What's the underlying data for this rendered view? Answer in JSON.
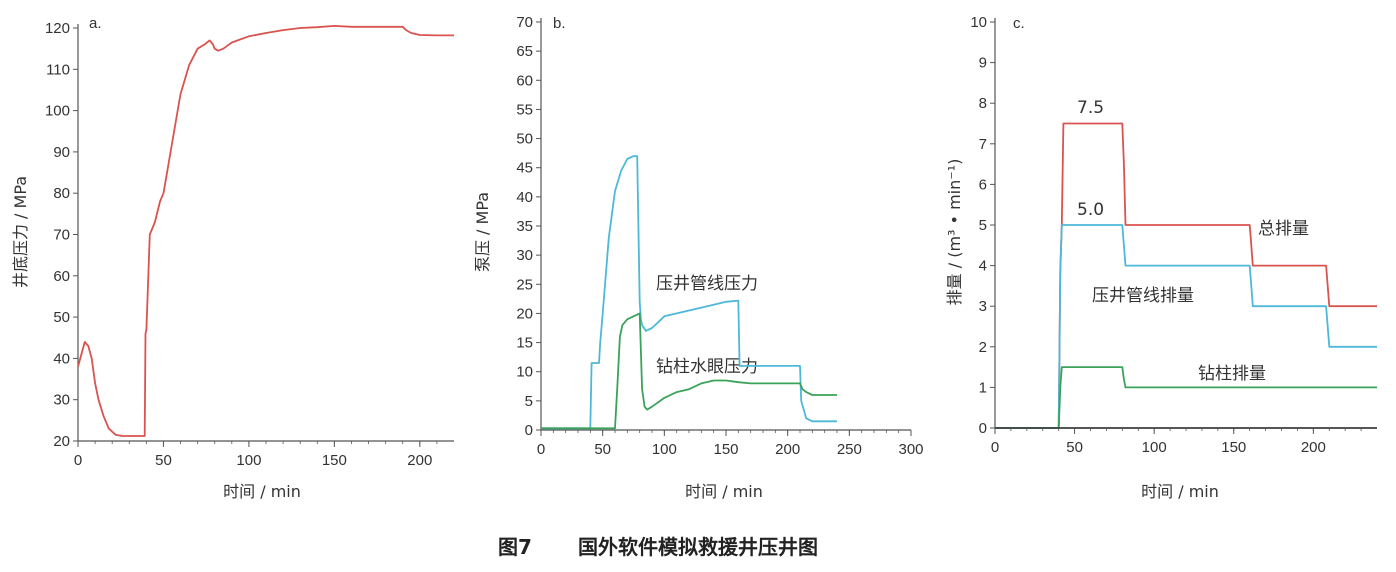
{
  "caption": {
    "label": "图7",
    "text": "国外软件模拟救援井压井图"
  },
  "colors": {
    "red": "#d9534f",
    "blue": "#4db8d8",
    "green": "#3aa35a",
    "axis": "#555555"
  },
  "chart_data": [
    {
      "type": "line",
      "panel": "a.",
      "xlabel": "时间 / min",
      "ylabel": "井底压力 / MPa",
      "xlim": [
        0,
        220
      ],
      "ylim": [
        20,
        120
      ],
      "xticks": [
        0,
        50,
        100,
        150,
        200
      ],
      "yticks": [
        20,
        30,
        40,
        50,
        60,
        70,
        80,
        90,
        100,
        110,
        120
      ],
      "series": [
        {
          "color": "#d9534f",
          "x": [
            0,
            2,
            4,
            6,
            8,
            10,
            12,
            15,
            18,
            22,
            26,
            30,
            35,
            39,
            39.5,
            40,
            42,
            45,
            48,
            50,
            55,
            60,
            65,
            70,
            74,
            77,
            79,
            80,
            82,
            85,
            90,
            100,
            110,
            120,
            130,
            140,
            150,
            160,
            170,
            190,
            192,
            195,
            200,
            210,
            220
          ],
          "y": [
            38,
            41,
            44,
            43,
            40,
            34,
            30,
            26,
            23,
            21.5,
            21.2,
            21.2,
            21.2,
            21.2,
            46,
            47,
            70,
            73,
            78,
            80,
            92,
            104,
            111,
            115,
            116,
            117,
            116,
            115,
            114.5,
            115,
            116.5,
            118,
            118.8,
            119.5,
            120,
            120.2,
            120.5,
            120.3,
            120.3,
            120.3,
            119.5,
            118.8,
            118.3,
            118.2,
            118.2
          ]
        }
      ]
    },
    {
      "type": "line",
      "panel": "b.",
      "xlabel": "时间 / min",
      "ylabel": "泵压 / MPa",
      "xlim": [
        0,
        300
      ],
      "ylim": [
        0,
        70
      ],
      "xticks": [
        0,
        50,
        100,
        150,
        200,
        250,
        300
      ],
      "yticks": [
        0,
        5,
        10,
        15,
        20,
        25,
        30,
        35,
        40,
        45,
        50,
        55,
        60,
        65,
        70
      ],
      "series": [
        {
          "name": "压井管线压力",
          "color": "#4db8d8",
          "x": [
            0,
            40,
            41,
            47,
            48,
            50,
            55,
            60,
            65,
            70,
            75,
            78,
            80,
            81,
            82,
            85,
            90,
            95,
            100,
            110,
            120,
            130,
            140,
            150,
            160,
            161,
            163,
            165,
            170,
            180,
            190,
            200,
            210,
            211,
            215,
            220,
            240
          ],
          "y": [
            0.3,
            0.3,
            11.5,
            11.5,
            15,
            20,
            33,
            41,
            44.5,
            46.5,
            47,
            47,
            22,
            19,
            18,
            17,
            17.5,
            18.5,
            19.5,
            20,
            20.5,
            21,
            21.5,
            22,
            22.2,
            11,
            11,
            11,
            11,
            11,
            11,
            11,
            11,
            5,
            2,
            1.5,
            1.5
          ]
        },
        {
          "name": "钻柱水眼压力",
          "color": "#3aa35a",
          "x": [
            0,
            40,
            60,
            62,
            64,
            66,
            70,
            75,
            80,
            82,
            84,
            86,
            90,
            100,
            110,
            120,
            130,
            140,
            150,
            160,
            170,
            180,
            190,
            200,
            210,
            212,
            215,
            220,
            240
          ],
          "y": [
            0.3,
            0.3,
            0.3,
            8,
            16,
            18,
            19,
            19.5,
            20,
            7,
            4,
            3.5,
            4,
            5.5,
            6.5,
            7,
            8,
            8.5,
            8.5,
            8.2,
            8,
            8,
            8,
            8,
            8,
            7,
            6.5,
            6,
            6
          ]
        }
      ],
      "annotations": [
        "压井管线压力",
        "钻柱水眼压力"
      ]
    },
    {
      "type": "line",
      "panel": "c.",
      "xlabel": "时间 / min",
      "ylabel": "排量 / (m³ • min⁻¹)",
      "xlim": [
        0,
        240
      ],
      "ylim": [
        0,
        10
      ],
      "xticks": [
        0,
        50,
        100,
        150,
        200
      ],
      "yticks": [
        0,
        1,
        2,
        3,
        4,
        5,
        6,
        7,
        8,
        9,
        10
      ],
      "series": [
        {
          "name": "总排量",
          "color": "#d9534f",
          "x": [
            0,
            40,
            41,
            42,
            43,
            80,
            81,
            82,
            160,
            161,
            162,
            208,
            209,
            210,
            240
          ],
          "y": [
            0,
            0,
            3.9,
            5,
            7.5,
            7.5,
            6.5,
            5,
            5,
            4.5,
            4,
            4,
            3.5,
            3,
            3
          ]
        },
        {
          "name": "压井管线排量",
          "color": "#4db8d8",
          "x": [
            0,
            40,
            41,
            42,
            80,
            81,
            82,
            160,
            161,
            162,
            208,
            209,
            210,
            240
          ],
          "y": [
            0,
            0,
            3.9,
            5,
            5,
            4.5,
            4,
            4,
            3.5,
            3,
            3,
            2.5,
            2,
            2
          ]
        },
        {
          "name": "钻柱排量",
          "color": "#3aa35a",
          "x": [
            0,
            40,
            41,
            42,
            80,
            81,
            82,
            240
          ],
          "y": [
            0,
            0,
            1,
            1.5,
            1.5,
            1.2,
            1,
            1
          ]
        },
        {
          "name": "",
          "color": "#444444",
          "x": [
            0,
            240
          ],
          "y": [
            0,
            0
          ]
        }
      ],
      "annotations": [
        "7.5",
        "5.0",
        "总排量",
        "压井管线排量",
        "钻柱排量"
      ]
    }
  ]
}
